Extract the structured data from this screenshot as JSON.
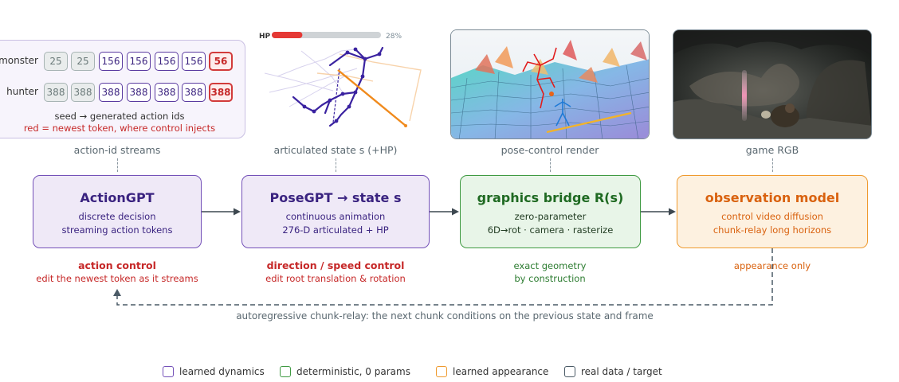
{
  "token_panel": {
    "rows": [
      {
        "label": "monster",
        "tokens": [
          {
            "value": "25",
            "kind": "seed"
          },
          {
            "value": "25",
            "kind": "seed"
          },
          {
            "value": "156",
            "kind": "gen"
          },
          {
            "value": "156",
            "kind": "gen"
          },
          {
            "value": "156",
            "kind": "gen"
          },
          {
            "value": "156",
            "kind": "gen"
          },
          {
            "value": "56",
            "kind": "newest"
          }
        ]
      },
      {
        "label": "hunter",
        "tokens": [
          {
            "value": "388",
            "kind": "seed"
          },
          {
            "value": "388",
            "kind": "seed"
          },
          {
            "value": "388",
            "kind": "gen"
          },
          {
            "value": "388",
            "kind": "gen"
          },
          {
            "value": "388",
            "kind": "gen"
          },
          {
            "value": "388",
            "kind": "gen"
          },
          {
            "value": "388",
            "kind": "newest"
          }
        ]
      }
    ],
    "caption_line1": "seed → generated action ids",
    "caption_line2": "red = newest token, where control injects"
  },
  "hp_bar": {
    "label": "HP",
    "value_text": "28%",
    "fraction": 0.28,
    "fill_color": "#e53935",
    "track_color": "#cfd3d6"
  },
  "columns": [
    {
      "caption": "action-id streams"
    },
    {
      "caption": "articulated state s (+HP)"
    },
    {
      "caption": "pose-control render"
    },
    {
      "caption": "game RGB"
    }
  ],
  "boxes": [
    {
      "title": "ActionGPT",
      "line1": "discrete decision",
      "line2": "streaming action tokens",
      "style": "learned-dynamics"
    },
    {
      "title": "PoseGPT → state s",
      "line1": "continuous animation",
      "line2": "276-D articulated + HP",
      "style": "learned-dynamics"
    },
    {
      "title": "graphics bridge R(s)",
      "line1": "zero-parameter",
      "line2": "6D→rot · camera · rasterize",
      "style": "deterministic"
    },
    {
      "title": "observation model",
      "line1": "control video diffusion",
      "line2": "chunk-relay long horizons",
      "style": "learned-appearance"
    }
  ],
  "notes": [
    {
      "title": "action control",
      "text": "edit the newest token as it streams",
      "color": "#c62828"
    },
    {
      "title": "direction / speed control",
      "text": "edit root translation & rotation",
      "color": "#c62828"
    },
    {
      "line1": "exact geometry",
      "line2": "by construction",
      "color": "#2e7d32"
    },
    {
      "line1": "appearance only",
      "color": "#d9620f"
    }
  ],
  "feedback_caption": "autoregressive chunk-relay: the next chunk conditions on the previous state and frame",
  "legend": [
    {
      "label": "learned dynamics",
      "color": "#7451b8"
    },
    {
      "label": "deterministic, 0 params",
      "color": "#3f9a42"
    },
    {
      "label": "learned appearance",
      "color": "#ef9a2e"
    },
    {
      "label": "real data / target",
      "color": "#4a5a66"
    }
  ],
  "colors": {
    "purple": "#7451b8",
    "green": "#3f9a42",
    "orange": "#ef9a2e",
    "red": "#c62828",
    "connector": "#4a5a66"
  }
}
